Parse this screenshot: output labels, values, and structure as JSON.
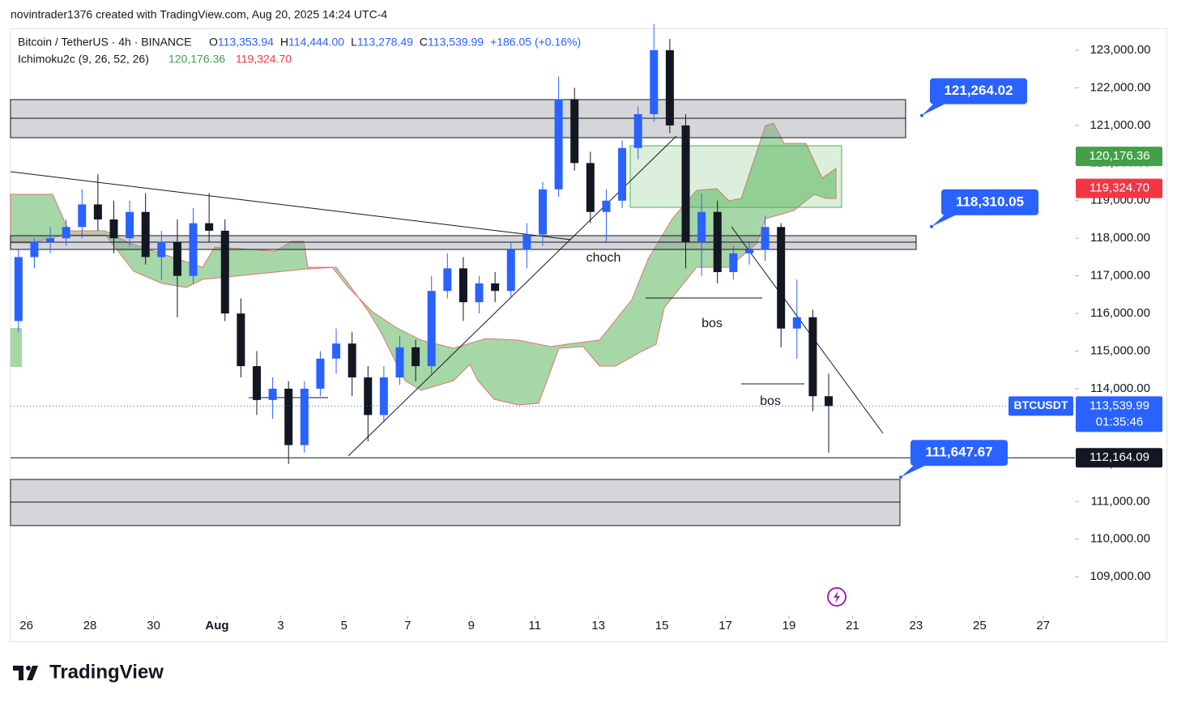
{
  "header": {
    "caption": "novintrader1376 created with TradingView.com, Aug 20, 2025 14:24 UTC-4"
  },
  "legend": {
    "symbol": "Bitcoin / TetherUS · 4h · BINANCE",
    "ohlc": [
      {
        "key": "O",
        "text": "113,353.94"
      },
      {
        "key": "H",
        "text": "114,444.00"
      },
      {
        "key": "L",
        "text": "113,278.49"
      },
      {
        "key": "C",
        "text": "113,539.99"
      }
    ],
    "change": "+186.05 (+0.16%)",
    "indicator": "Ichimoku2c (9, 26, 52, 26)",
    "indicator_a": "120,176.36",
    "indicator_b": "119,324.70"
  },
  "chart_data": {
    "type": "candlestick",
    "up_color": "#2962ff",
    "down_color": "#131722",
    "x": [
      25.75,
      26.25,
      26.75,
      27.25,
      27.75,
      28.25,
      28.75,
      29.25,
      29.75,
      30.25,
      30.75,
      31.25,
      31.75,
      32.25,
      32.75,
      33.25,
      33.75,
      34.25,
      34.75,
      35.25,
      35.75,
      36.25,
      36.75,
      37.25,
      37.75,
      38.25,
      38.75,
      39.25,
      39.75,
      40.25,
      40.75,
      41.25,
      41.75,
      42.25,
      42.75,
      43.25,
      43.75,
      44.25,
      44.75,
      45.25,
      45.75,
      46.25,
      46.75,
      47.25,
      47.75,
      48.25,
      48.75,
      49.25,
      49.75,
      50.25,
      50.75,
      51.25
    ],
    "open": [
      115800,
      117500,
      117900,
      118000,
      118300,
      118900,
      118500,
      118000,
      118700,
      117500,
      117900,
      117000,
      118400,
      118200,
      116000,
      114600,
      113700,
      114000,
      112500,
      114000,
      114800,
      115200,
      114300,
      113300,
      114300,
      115100,
      114600,
      116600,
      117200,
      116300,
      116800,
      116600,
      117700,
      118100,
      119300,
      121700,
      120000,
      118700,
      119000,
      120400,
      121300,
      123000,
      121000,
      117900,
      118700,
      117100,
      117600,
      117700,
      118300,
      115600,
      115900,
      113800
    ],
    "high": [
      117700,
      118000,
      118300,
      118500,
      119300,
      119700,
      119000,
      119000,
      119200,
      118200,
      118500,
      118800,
      119200,
      118500,
      116400,
      115000,
      114300,
      114200,
      114200,
      115000,
      115600,
      115500,
      114600,
      114600,
      115400,
      115300,
      117000,
      117600,
      117500,
      117000,
      117100,
      117900,
      118400,
      119500,
      122300,
      122000,
      120300,
      119300,
      120600,
      121500,
      123700,
      123300,
      121300,
      119200,
      119000,
      117800,
      117900,
      118600,
      118400,
      116900,
      116100,
      114400
    ],
    "low": [
      115500,
      117200,
      117600,
      117800,
      118000,
      118200,
      117600,
      117800,
      117300,
      116900,
      115900,
      116800,
      117900,
      115800,
      114300,
      113300,
      113200,
      112000,
      112300,
      113800,
      114400,
      113800,
      112600,
      113100,
      114100,
      114200,
      114400,
      116400,
      115800,
      116000,
      116300,
      116400,
      117200,
      117800,
      119100,
      119800,
      118400,
      117900,
      118800,
      120100,
      121100,
      120800,
      117200,
      117000,
      116800,
      116900,
      117300,
      117400,
      115100,
      114800,
      113400,
      112300
    ],
    "close": [
      117500,
      117900,
      118000,
      118300,
      118900,
      118500,
      118000,
      118700,
      117500,
      117900,
      117000,
      118400,
      118200,
      116000,
      114600,
      113700,
      114000,
      112500,
      114000,
      114800,
      115200,
      114300,
      113300,
      114300,
      115100,
      114600,
      116600,
      117200,
      116300,
      116800,
      116600,
      117700,
      118100,
      119300,
      121700,
      120000,
      118700,
      119000,
      120400,
      121300,
      123000,
      121000,
      117900,
      118700,
      117100,
      117600,
      117700,
      118300,
      115600,
      115900,
      113800,
      113540
    ],
    "xlim": [
      25.5,
      59
    ],
    "ylim": [
      123560,
      107970
    ],
    "xticks": [
      26,
      28,
      30,
      {
        "value": 32,
        "label": "Aug"
      },
      {
        "value": 34,
        "label": "3"
      },
      {
        "value": 36,
        "label": "5"
      },
      {
        "value": 38,
        "label": "7"
      },
      {
        "value": 40,
        "label": "9"
      },
      {
        "value": 42,
        "label": "11"
      },
      {
        "value": 44,
        "label": "13"
      },
      {
        "value": 46,
        "label": "15"
      },
      {
        "value": 48,
        "label": "17"
      },
      {
        "value": 50,
        "label": "19"
      },
      {
        "value": 52,
        "label": "21"
      },
      {
        "value": 54,
        "label": "23"
      },
      {
        "value": 56,
        "label": "25"
      },
      {
        "value": 58,
        "label": "27"
      }
    ],
    "yticks": [
      {
        "value": 123000,
        "label": "123,000.00"
      },
      {
        "value": 122000,
        "label": "122,000.00"
      },
      {
        "value": 121000,
        "label": "121,000.00"
      },
      {
        "value": 120000,
        "label": "120,000.00"
      },
      {
        "value": 119000,
        "label": "119,000.00"
      },
      {
        "value": 118000,
        "label": "118,000.00"
      },
      {
        "value": 117000,
        "label": "117,000.00"
      },
      {
        "value": 116000,
        "label": "116,000.00"
      },
      {
        "value": 115000,
        "label": "115,000.00"
      },
      {
        "value": 114000,
        "label": "114,000.00"
      },
      {
        "value": 113000,
        "label": "113,000.00"
      },
      {
        "value": 112000,
        "label": "112,000.00"
      },
      {
        "value": 111000,
        "label": "111,000.00"
      },
      {
        "value": 110000,
        "label": "110,000.00"
      },
      {
        "value": 109000,
        "label": "109,000.00"
      }
    ],
    "callouts": [
      {
        "value": 121264.02,
        "label": "121,264.02"
      },
      {
        "value": 118310.05,
        "label": "118,310.05"
      },
      {
        "value": 111647.67,
        "label": "111,647.67"
      }
    ],
    "axis_labels": [
      {
        "value": 120176.36,
        "label": "120,176.36",
        "color": "#43a047"
      },
      {
        "value": 119324.7,
        "label": "119,324.70",
        "color": "#f23645"
      },
      {
        "value": 112164.09,
        "label": "112,164.09",
        "color": "#131722"
      }
    ],
    "last_price": {
      "value": 113539.99,
      "label": "113,539.99",
      "countdown": "01:35:46",
      "symbol": "BTCUSDT"
    },
    "annotations": [
      "choch",
      "bos",
      "bos"
    ]
  },
  "footer": {
    "brand": "TradingView"
  }
}
